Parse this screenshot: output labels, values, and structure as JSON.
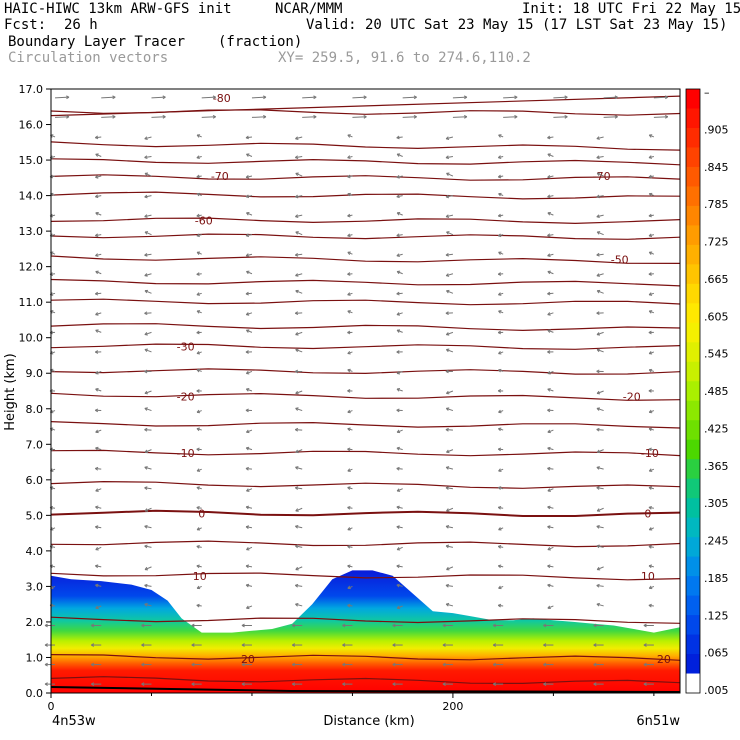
{
  "header": {
    "model": "HAIC-HIWC 13km ARW-GFS init",
    "org": "NCAR/MMM",
    "init": "Init: 18 UTC Fri 22 May 15",
    "fcst_label": "Fcst:",
    "fcst_value": "26 h",
    "valid": "Valid: 20 UTC Sat 23 May 15 (17 LST Sat 23 May 15)",
    "field": "Boundary Layer Tracer",
    "field_units": "(fraction)",
    "overlay": "Circulation vectors",
    "xy": "XY= 259.5, 91.6 to 274.6,110.2"
  },
  "chart_data": {
    "type": "area",
    "xlabel": "Distance (km)",
    "ylabel": "Height (km)",
    "xlim": [
      0,
      313
    ],
    "ylim": [
      0,
      17
    ],
    "x_ticks": [
      "0",
      "200"
    ],
    "x_tick_values": [
      0,
      200
    ],
    "x_left_label": "4n53w",
    "x_right_label": "6n51w",
    "y_ticks": [
      "0.0",
      "1.0",
      "2.0",
      "3.0",
      "4.0",
      "5.0",
      "6.0",
      "7.0",
      "8.0",
      "9.0",
      "10.0",
      "11.0",
      "12.0",
      "13.0",
      "14.0",
      "15.0",
      "16.0",
      "17.0"
    ],
    "y_tick_values": [
      0,
      1,
      2,
      3,
      4,
      5,
      6,
      7,
      8,
      9,
      10,
      11,
      12,
      13,
      14,
      15,
      16,
      17
    ],
    "tracer_top_km": {
      "x": [
        0,
        10,
        25,
        40,
        50,
        58,
        65,
        75,
        90,
        100,
        110,
        120,
        130,
        140,
        150,
        160,
        170,
        180,
        190,
        200,
        210,
        220,
        230,
        240,
        250,
        260,
        270,
        280,
        290,
        300,
        313
      ],
      "y": [
        3.3,
        3.2,
        3.15,
        3.05,
        2.9,
        2.6,
        2.1,
        1.7,
        1.7,
        1.75,
        1.8,
        1.95,
        2.5,
        3.2,
        3.45,
        3.45,
        3.3,
        2.8,
        2.3,
        2.25,
        2.15,
        2.05,
        2.05,
        2.1,
        2.05,
        2.0,
        1.95,
        1.9,
        1.8,
        1.7,
        1.85
      ]
    },
    "isotherm_labels": [
      "-80",
      "-70",
      "-70",
      "-60",
      "-50",
      "-30",
      "-20",
      "-20",
      "-10",
      "-10",
      "0",
      "0",
      "10",
      "10",
      "20",
      "20"
    ],
    "colorbar": {
      "labels": [
        "–",
        ".905",
        ".845",
        ".785",
        ".725",
        ".665",
        ".605",
        ".545",
        ".485",
        ".425",
        ".365",
        ".305",
        ".245",
        ".185",
        ".125",
        ".065",
        ".005"
      ],
      "colors": [
        "#ff0000",
        "#ff1600",
        "#ff2c00",
        "#ff4300",
        "#ff5a00",
        "#ff7000",
        "#ff8600",
        "#ff9c00",
        "#ffb000",
        "#ffc400",
        "#ffd800",
        "#ffe800",
        "#f5f000",
        "#e0f000",
        "#c8f000",
        "#aaf000",
        "#8ce800",
        "#6ee000",
        "#4cd800",
        "#2ad040",
        "#10c878",
        "#00c0a0",
        "#00b8c0",
        "#00a8d8",
        "#0090e8",
        "#0078f0",
        "#0060f0",
        "#0048ec",
        "#0032e4",
        "#0020dc",
        "#ffffff"
      ]
    },
    "grid": false,
    "legend": "colorbar-right"
  }
}
